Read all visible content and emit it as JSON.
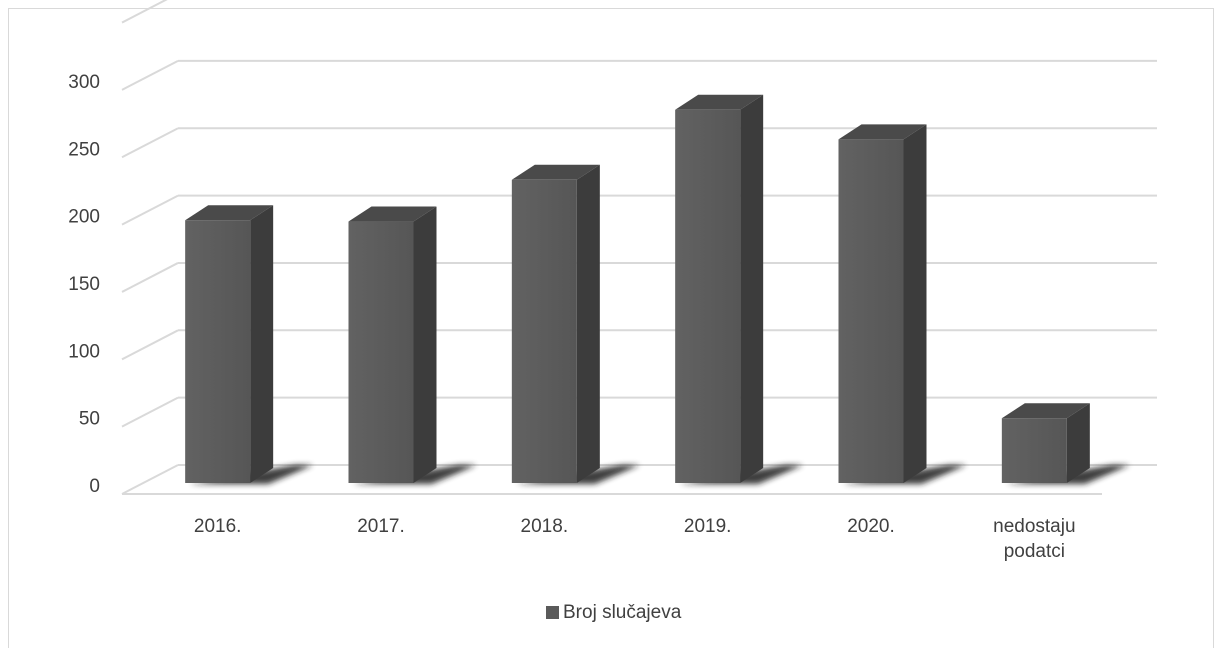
{
  "chart_data": {
    "type": "bar",
    "style": "3d-column",
    "categories": [
      "2016.",
      "2017.",
      "2018.",
      "2019.",
      "2020.",
      "nedostaju podatci"
    ],
    "category_lines": [
      [
        "2016."
      ],
      [
        "2017."
      ],
      [
        "2018."
      ],
      [
        "2019."
      ],
      [
        "2020."
      ],
      [
        "nedostaju",
        "podatci"
      ]
    ],
    "series": [
      {
        "name": "Broj slučajeva",
        "values": [
          204,
          203,
          234,
          286,
          264,
          57
        ],
        "color": "#5a5a5a"
      }
    ],
    "ylim": [
      0,
      300
    ],
    "yticks": [
      "0",
      "50",
      "100",
      "150",
      "200",
      "250",
      "300"
    ],
    "xlabel": "",
    "ylabel": "",
    "grid": true,
    "legend_position": "bottom"
  }
}
